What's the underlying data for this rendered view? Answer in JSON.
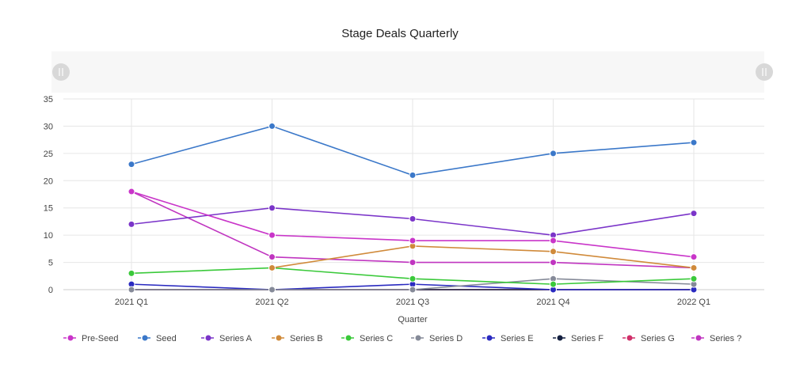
{
  "chart_data": {
    "type": "line",
    "title": "Stage Deals Quarterly",
    "xlabel": "Quarter",
    "ylabel": "",
    "categories": [
      "2021 Q1",
      "2021 Q2",
      "2021 Q3",
      "2021 Q4",
      "2022 Q1"
    ],
    "ylim": [
      0,
      35
    ],
    "yticks": [
      0,
      5,
      10,
      15,
      20,
      25,
      30,
      35
    ],
    "grid": true,
    "legend_placement": "bottom",
    "series": [
      {
        "name": "Pre-Seed",
        "color": "#c935c9",
        "values": [
          18,
          10,
          9,
          9,
          6
        ]
      },
      {
        "name": "Seed",
        "color": "#3b78c9",
        "values": [
          23,
          30,
          21,
          25,
          27
        ]
      },
      {
        "name": "Series A",
        "color": "#7b35c9",
        "values": [
          12,
          15,
          13,
          10,
          14
        ]
      },
      {
        "name": "Series B",
        "color": "#d08a3a",
        "values": [
          null,
          4,
          8,
          7,
          4
        ]
      },
      {
        "name": "Series C",
        "color": "#3ac93a",
        "values": [
          3,
          4,
          2,
          1,
          2
        ]
      },
      {
        "name": "Series D",
        "color": "#858a98",
        "values": [
          0,
          0,
          0,
          2,
          1
        ]
      },
      {
        "name": "Series E",
        "color": "#2a2ac0",
        "values": [
          1,
          0,
          1,
          0,
          0
        ]
      },
      {
        "name": "Series F",
        "color": "#142040",
        "values": [
          0,
          0,
          0,
          0,
          0
        ]
      },
      {
        "name": "Series G",
        "color": "#d0306a",
        "values": [
          0,
          0,
          0,
          0,
          0
        ]
      },
      {
        "name": "Series ?",
        "color": "#c035c0",
        "values": [
          18,
          6,
          5,
          5,
          4
        ]
      }
    ]
  }
}
